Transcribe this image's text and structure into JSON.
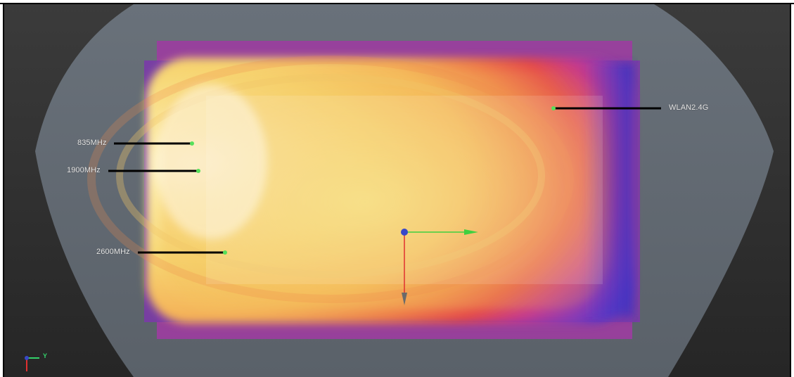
{
  "viewer": {
    "probes": [
      {
        "id": "835",
        "label": "835MHz"
      },
      {
        "id": "1900",
        "label": "1900MHz"
      },
      {
        "id": "2600",
        "label": "2600MHz"
      },
      {
        "id": "wlan",
        "label": "WLAN2.4G"
      }
    ],
    "axis_triad": {
      "y_label": "Y"
    }
  },
  "colors": {
    "background_top": "#3a3a3a",
    "background_bottom": "#2b2b2b",
    "phone_body": "#5f6770",
    "heat_hot": "#fff3c4",
    "heat_warm": "#f8c04a",
    "heat_mid": "#ef5b3a",
    "heat_cool": "#b0309a",
    "heat_cold": "#5a3cc8",
    "probe_dot": "#56e05a",
    "axis_x": "#3fd03f",
    "axis_z": "#e03030",
    "origin": "#3848c8"
  }
}
